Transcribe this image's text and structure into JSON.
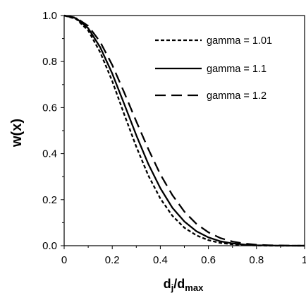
{
  "chart_data": {
    "type": "line",
    "title": "",
    "xlabel": {
      "base": "d",
      "sub1": "j",
      "slash": "/d",
      "sub2": "max"
    },
    "ylabel": "w(x)",
    "xlim": [
      0,
      1
    ],
    "ylim": [
      0,
      1
    ],
    "x_ticks": [
      0,
      0.2,
      0.4,
      0.6,
      0.8,
      1
    ],
    "x_tick_labels": [
      "0",
      "0.2",
      "0.4",
      "0.6",
      "0.8",
      "1"
    ],
    "y_ticks": [
      0,
      0.2,
      0.4,
      0.6,
      0.8,
      1
    ],
    "y_tick_labels": [
      "0.0",
      "0.2",
      "0.4",
      "0.6",
      "0.8",
      "1.0"
    ],
    "grid": false,
    "legend_position": "top-right",
    "x": [
      0,
      0.05,
      0.1,
      0.15,
      0.2,
      0.25,
      0.3,
      0.35,
      0.4,
      0.45,
      0.5,
      0.55,
      0.6,
      0.65,
      0.7,
      0.75,
      0.8,
      0.85,
      0.9,
      0.95,
      1.0
    ],
    "series": [
      {
        "name": "gamma = 1.01",
        "style": "dotted",
        "values": [
          1.0,
          0.985,
          0.935,
          0.84,
          0.715,
          0.57,
          0.43,
          0.305,
          0.205,
          0.13,
          0.078,
          0.045,
          0.024,
          0.012,
          0.006,
          0.003,
          0.001,
          0.0,
          0.0,
          0.0,
          0.0
        ]
      },
      {
        "name": "gamma = 1.1",
        "style": "solid",
        "values": [
          1.0,
          0.988,
          0.945,
          0.862,
          0.748,
          0.615,
          0.48,
          0.355,
          0.25,
          0.165,
          0.105,
          0.063,
          0.036,
          0.019,
          0.01,
          0.005,
          0.002,
          0.001,
          0.0,
          0.0,
          0.0
        ]
      },
      {
        "name": "gamma = 1.2",
        "style": "dashed",
        "values": [
          1.0,
          0.99,
          0.955,
          0.885,
          0.785,
          0.665,
          0.54,
          0.42,
          0.31,
          0.22,
          0.148,
          0.095,
          0.058,
          0.033,
          0.018,
          0.009,
          0.004,
          0.002,
          0.001,
          0.0,
          0.0
        ]
      }
    ]
  }
}
